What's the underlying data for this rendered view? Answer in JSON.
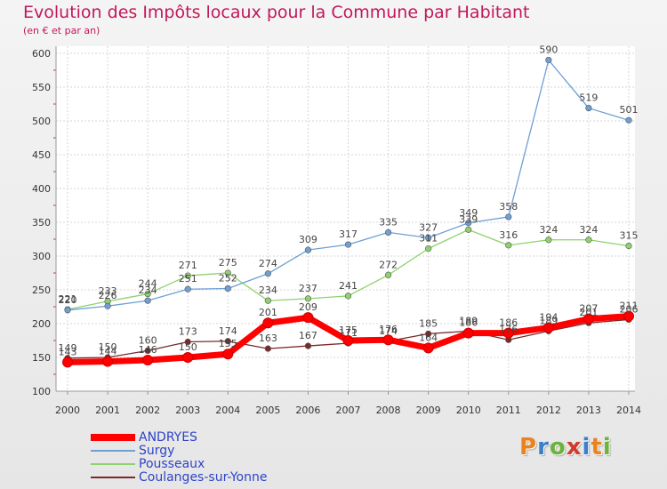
{
  "header": {
    "title": "Evolution des Impôts locaux pour la Commune par Habitant",
    "subtitle": "(en € et par an)"
  },
  "logo": {
    "text": "Proxiti",
    "letters": [
      {
        "ch": "P",
        "color": "#e9831f"
      },
      {
        "ch": "r",
        "color": "#3c7fc9"
      },
      {
        "ch": "o",
        "color": "#6bb33a"
      },
      {
        "ch": "x",
        "color": "#d43a2a"
      },
      {
        "ch": "i",
        "color": "#3c7fc9"
      },
      {
        "ch": "t",
        "color": "#e9831f"
      },
      {
        "ch": "i",
        "color": "#6bb33a"
      }
    ]
  },
  "chart_data": {
    "type": "line",
    "title": "Evolution des Impôts locaux pour la Commune par Habitant",
    "subtitle": "(en € et par an)",
    "xlabel": "",
    "ylabel": "",
    "x": [
      "2000",
      "2001",
      "2002",
      "2003",
      "2004",
      "2005",
      "2006",
      "2007",
      "2008",
      "2009",
      "2010",
      "2011",
      "2012",
      "2013",
      "2014"
    ],
    "ylim": [
      100,
      600
    ],
    "yticks": [
      "100",
      "150",
      "200",
      "250",
      "300",
      "350",
      "400",
      "450",
      "500",
      "550",
      "600"
    ],
    "grid": true,
    "legend_position": "bottom-left",
    "series": [
      {
        "name": "ANDRYES",
        "color": "#ff0000",
        "values": [
          143,
          144,
          146,
          150,
          155,
          201,
          209,
          175,
          176,
          164,
          186,
          186,
          194,
          207,
          211
        ],
        "labels": [
          "143",
          "144",
          "146",
          "150",
          "155",
          "201",
          "209",
          "175",
          "176",
          "164",
          "186",
          "186",
          "194",
          "207",
          "211"
        ]
      },
      {
        "name": "Surgy",
        "color": "#6fa0d4",
        "values": [
          220,
          226,
          234,
          251,
          252,
          274,
          309,
          317,
          335,
          327,
          349,
          358,
          590,
          519,
          501
        ],
        "labels": [
          "220",
          "226",
          "234",
          "251",
          "252",
          "274",
          "309",
          "317",
          "335",
          "327",
          "349",
          "358",
          "590",
          "519",
          "501"
        ]
      },
      {
        "name": "Pousseaux",
        "color": "#8ed26e",
        "values": [
          221,
          233,
          244,
          271,
          275,
          234,
          237,
          241,
          272,
          311,
          339,
          316,
          324,
          324,
          315
        ],
        "labels": [
          "221",
          "233",
          "244",
          "271",
          "275",
          "234",
          "237",
          "241",
          "272",
          "311",
          "339",
          "316",
          "324",
          "324",
          "315"
        ]
      },
      {
        "name": "Coulanges-sur-Yonne",
        "color": "#7b2a2a",
        "values": [
          149,
          150,
          160,
          173,
          174,
          163,
          167,
          171,
          174,
          185,
          189,
          176,
          189,
          201,
          206
        ],
        "labels": [
          "149",
          "150",
          "160",
          "173",
          "174",
          "163",
          "167",
          "171",
          "174",
          "185",
          "189",
          "176",
          "189",
          "201",
          "206"
        ]
      }
    ]
  }
}
